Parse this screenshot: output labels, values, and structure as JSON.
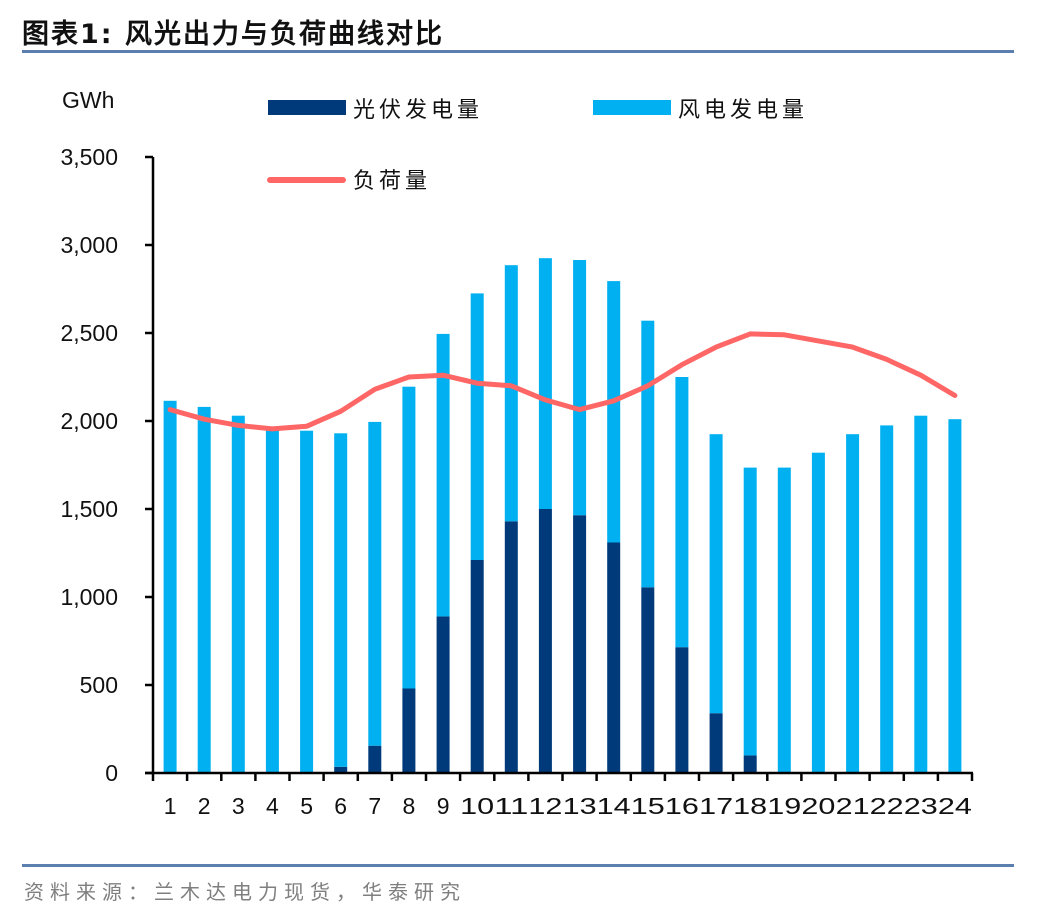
{
  "header": {
    "title": "图表1:  风光出力与负荷曲线对比"
  },
  "footer": {
    "source": "资料来源：兰木达电力现货，华泰研究"
  },
  "colors": {
    "solar": "#003a7a",
    "wind": "#00b0f0",
    "load": "#ff6666",
    "rule": "#5b7fae",
    "axis": "#000000"
  },
  "chart_data": {
    "type": "bar",
    "stacked": true,
    "title": "风光出力与负荷曲线对比",
    "ylabel": "GWh",
    "xlabel": "",
    "ylim": [
      0,
      3500
    ],
    "yticks": [
      0,
      500,
      1000,
      1500,
      2000,
      2500,
      3000,
      3500
    ],
    "ytick_labels": [
      "0",
      "500",
      "1,000",
      "1,500",
      "2,000",
      "2,500",
      "3,000",
      "3,500"
    ],
    "categories": [
      "1",
      "2",
      "3",
      "4",
      "5",
      "6",
      "7",
      "8",
      "9",
      "10",
      "11",
      "12",
      "13",
      "14",
      "15",
      "16",
      "17",
      "18",
      "19",
      "20",
      "21",
      "22",
      "23",
      "24"
    ],
    "grid": false,
    "legend_position": "top",
    "series": [
      {
        "name": "光伏发电量",
        "type": "bar",
        "color": "#003a7a",
        "values": [
          0,
          0,
          0,
          0,
          0,
          35,
          155,
          480,
          890,
          1210,
          1430,
          1500,
          1465,
          1310,
          1055,
          715,
          340,
          100,
          0,
          0,
          0,
          0,
          0,
          0
        ]
      },
      {
        "name": "风电发电量",
        "type": "bar",
        "color": "#00b0f0",
        "values": [
          2115,
          2080,
          2030,
          1960,
          1945,
          1895,
          1840,
          1715,
          1605,
          1515,
          1455,
          1425,
          1450,
          1485,
          1515,
          1535,
          1585,
          1635,
          1735,
          1820,
          1925,
          1975,
          2030,
          2010
        ]
      },
      {
        "name": "负荷量",
        "type": "line",
        "color": "#ff6666",
        "values": [
          2065,
          2010,
          1975,
          1955,
          1970,
          2055,
          2180,
          2250,
          2260,
          2215,
          2200,
          2120,
          2065,
          2115,
          2200,
          2320,
          2420,
          2495,
          2490,
          2455,
          2420,
          2350,
          2260,
          2145
        ]
      }
    ]
  }
}
